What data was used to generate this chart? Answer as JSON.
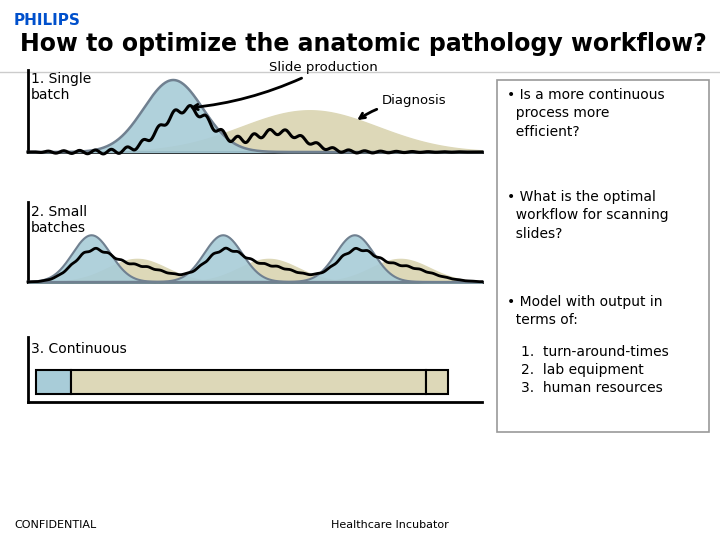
{
  "title": "How to optimize the anatomic pathology workflow?",
  "philips_color": "#0050cc",
  "philips_text": "PHILIPS",
  "background": "#ffffff",
  "blue_fill": "#a8ccd8",
  "beige_fill": "#ddd8b8",
  "blue_outline": "#708090",
  "right_box_border": "#888888",
  "bullet1": "• Is a more continuous\n  process more\n  efficient?",
  "bullet2": "• What is the optimal\n  workflow for scanning\n  slides?",
  "bullet3_header": "• Model with output in\n  terms of:",
  "bullet3_items": [
    "1.  turn-around-times",
    "2.  lab equipment",
    "3.  human resources"
  ],
  "label1": "1. Single\nbatch",
  "label2": "2. Small\nbatches",
  "label3": "3. Continuous",
  "slide_prod_label": "Slide production",
  "diagnosis_label": "Diagnosis",
  "confidential": "CONFIDENTIAL",
  "healthcare": "Healthcare Incubator",
  "title_fontsize": 17,
  "philips_fontsize": 11,
  "label_fontsize": 10,
  "bullet_fontsize": 10,
  "footer_fontsize": 8
}
